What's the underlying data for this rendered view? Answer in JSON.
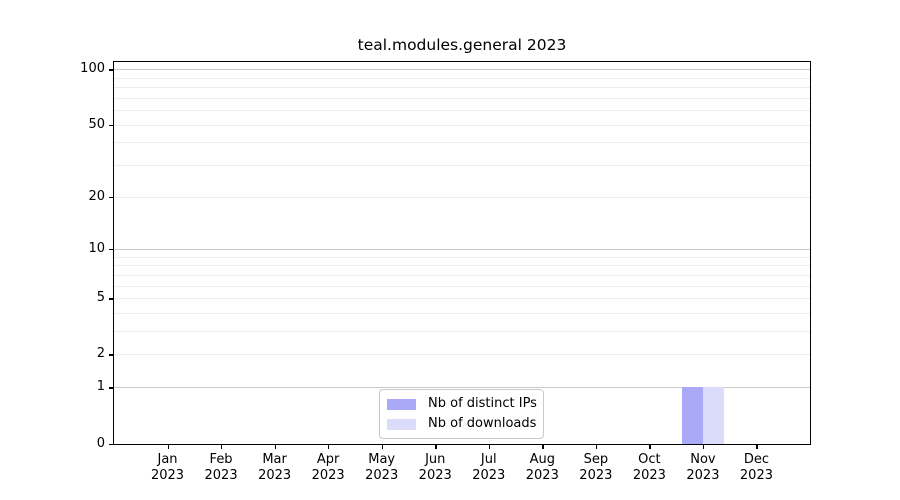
{
  "chart_data": {
    "type": "bar",
    "title": "teal.modules.general 2023",
    "categories": [
      "Jan",
      "Feb",
      "Mar",
      "Apr",
      "May",
      "Jun",
      "Jul",
      "Aug",
      "Sep",
      "Oct",
      "Nov",
      "Dec"
    ],
    "year_label": "2023",
    "series": [
      {
        "name": "Nb of distinct IPs",
        "color": "#a9a9f7",
        "values": [
          0,
          0,
          0,
          0,
          0,
          0,
          0,
          0,
          0,
          0,
          1,
          0
        ]
      },
      {
        "name": "Nb of downloads",
        "color": "#dbdbfa",
        "values": [
          0,
          0,
          0,
          0,
          0,
          0,
          0,
          0,
          0,
          0,
          1,
          0
        ]
      }
    ],
    "yscale": "log1p",
    "ylim": [
      0,
      100
    ],
    "ytick_values": [
      0,
      1,
      2,
      5,
      10,
      20,
      50,
      100
    ],
    "major_grid_values": [
      1,
      10,
      100
    ],
    "minor_grid_values": [
      2,
      3,
      4,
      5,
      6,
      7,
      8,
      9,
      20,
      30,
      40,
      50,
      60,
      70,
      80,
      90
    ],
    "grid": "both",
    "legend_position": "lower center",
    "colors": {
      "grid_major": "#c9c9c9",
      "grid_minor": "#ededed",
      "axis": "#000000",
      "background": "#ffffff"
    }
  }
}
